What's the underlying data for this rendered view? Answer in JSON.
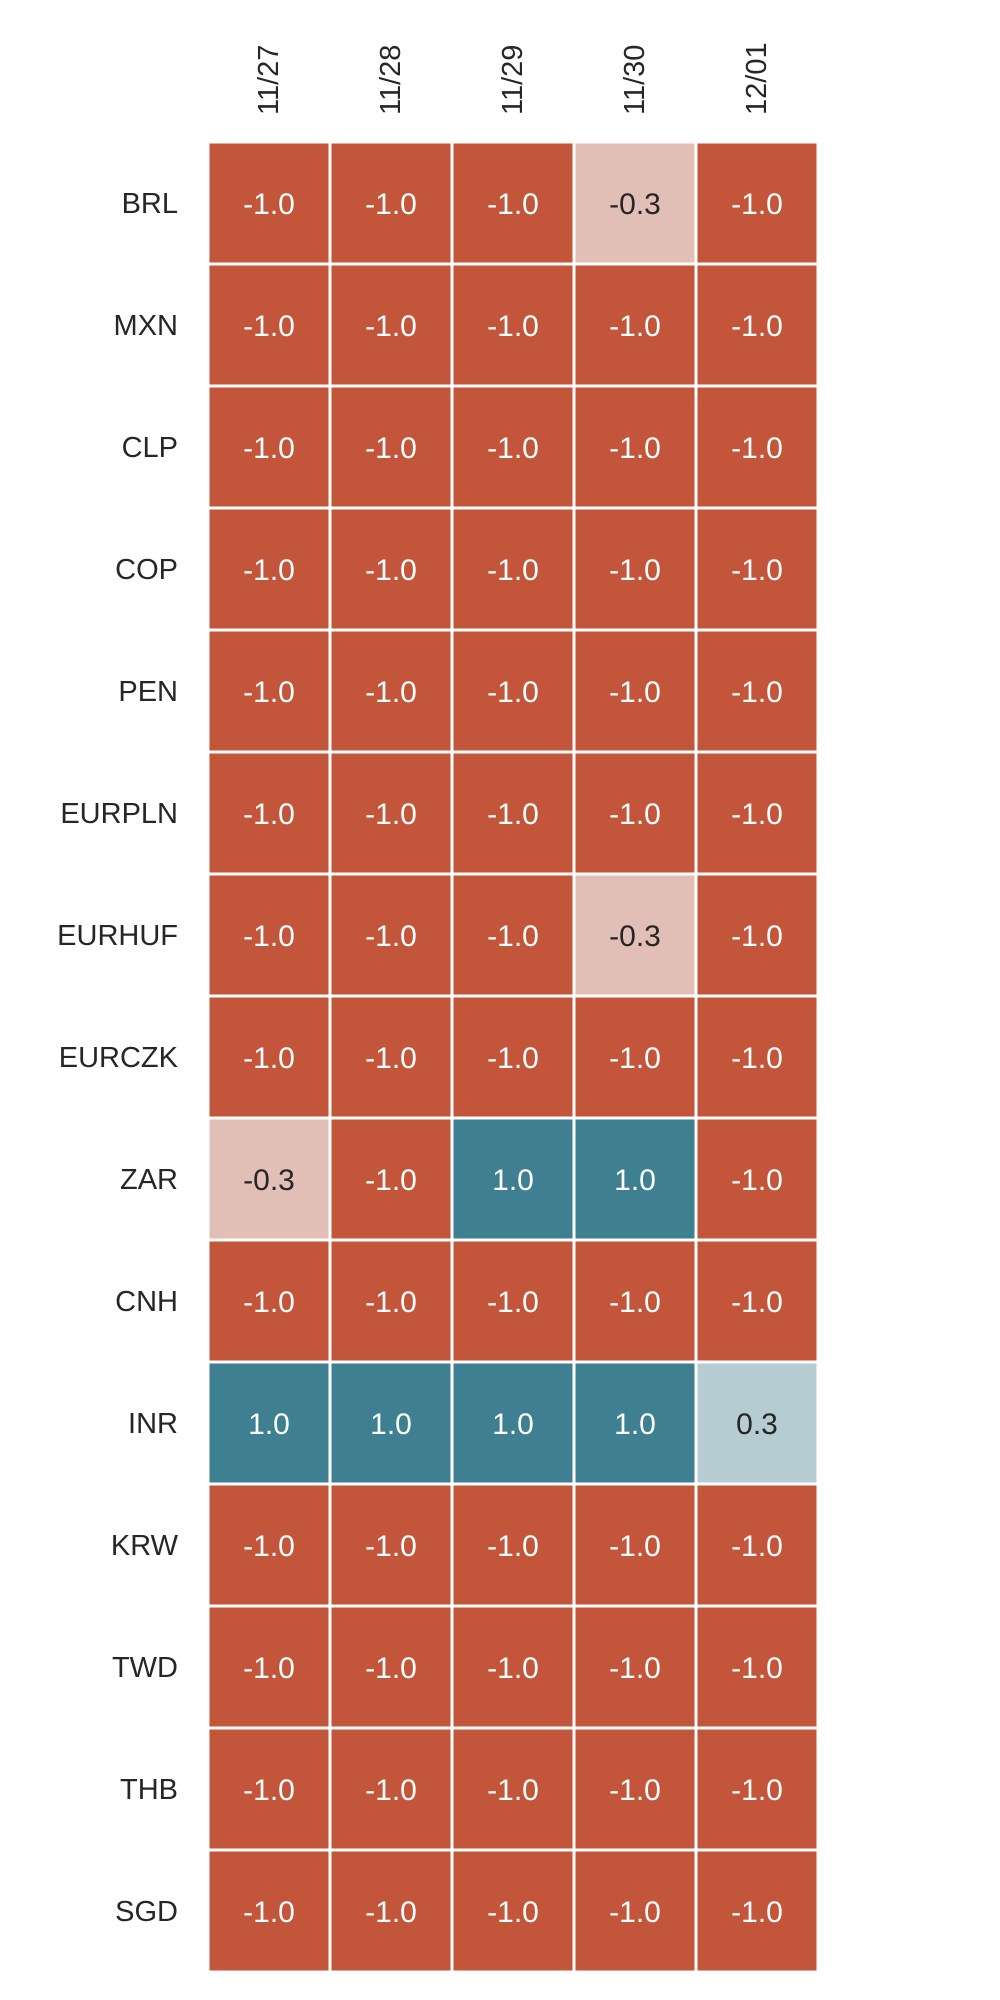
{
  "chart_data": {
    "type": "heatmap",
    "columns": [
      "11/27",
      "11/28",
      "11/29",
      "11/30",
      "12/01"
    ],
    "rows": [
      "BRL",
      "MXN",
      "CLP",
      "COP",
      "PEN",
      "EURPLN",
      "EURHUF",
      "EURCZK",
      "ZAR",
      "CNH",
      "INR",
      "KRW",
      "TWD",
      "THB",
      "SGD"
    ],
    "values": [
      [
        -1.0,
        -1.0,
        -1.0,
        -0.3,
        -1.0
      ],
      [
        -1.0,
        -1.0,
        -1.0,
        -1.0,
        -1.0
      ],
      [
        -1.0,
        -1.0,
        -1.0,
        -1.0,
        -1.0
      ],
      [
        -1.0,
        -1.0,
        -1.0,
        -1.0,
        -1.0
      ],
      [
        -1.0,
        -1.0,
        -1.0,
        -1.0,
        -1.0
      ],
      [
        -1.0,
        -1.0,
        -1.0,
        -1.0,
        -1.0
      ],
      [
        -1.0,
        -1.0,
        -1.0,
        -0.3,
        -1.0
      ],
      [
        -1.0,
        -1.0,
        -1.0,
        -1.0,
        -1.0
      ],
      [
        -0.3,
        -1.0,
        1.0,
        1.0,
        -1.0
      ],
      [
        -1.0,
        -1.0,
        -1.0,
        -1.0,
        -1.0
      ],
      [
        1.0,
        1.0,
        1.0,
        1.0,
        0.3
      ],
      [
        -1.0,
        -1.0,
        -1.0,
        -1.0,
        -1.0
      ],
      [
        -1.0,
        -1.0,
        -1.0,
        -1.0,
        -1.0
      ],
      [
        -1.0,
        -1.0,
        -1.0,
        -1.0,
        -1.0
      ],
      [
        -1.0,
        -1.0,
        -1.0,
        -1.0,
        -1.0
      ]
    ],
    "value_format": "0.0",
    "vmin": -1.0,
    "vmax": 1.0,
    "colors": {
      "negative": "#c3553b",
      "negative_light": "#e2bfb6",
      "positive": "#3e7f92",
      "positive_light": "#b4ccd2",
      "grid": "#ffffff",
      "label_text": "#262626",
      "dark_cell_text": "#ffffff"
    },
    "grid": true,
    "legend": "none"
  }
}
